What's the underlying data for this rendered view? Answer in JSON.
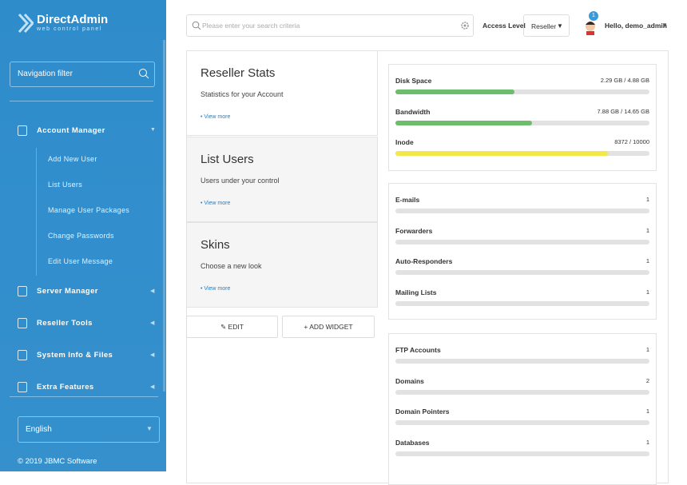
{
  "sidebar": {
    "logo": {
      "title": "DirectAdmin",
      "subtitle": "web control panel"
    },
    "nav_filter_placeholder": "Navigation filter",
    "menu": [
      {
        "label": "Account Manager",
        "items": [
          "Add New User",
          "List Users",
          "Manage User Packages",
          "Change Passwords",
          "Edit User Message"
        ]
      },
      {
        "label": "Server Manager"
      },
      {
        "label": "Reseller Tools"
      },
      {
        "label": "System Info & Files"
      },
      {
        "label": "Extra Features"
      }
    ],
    "language": "English",
    "footer": "© 2019 JBMC Software"
  },
  "topbar": {
    "search_placeholder": "Please enter your search criteria",
    "access_level_label": "Access Level",
    "access_level": "Reseller",
    "notifications": 1,
    "greeting": "Hello, demo_admin"
  },
  "widgets": [
    {
      "title": "Reseller Stats",
      "description": "Statistics for your Account",
      "link": "• View more"
    },
    {
      "title": "List Users",
      "description": "Users under your control",
      "link": "• View more"
    },
    {
      "title": "Skins",
      "description": "Choose a new look",
      "link": "• View more"
    }
  ],
  "buttons": {
    "edit": "EDIT",
    "add_widget": "ADD WIDGET"
  },
  "usage": [
    {
      "label": "Disk Space",
      "value_label": "2.29 GB / 4.88 GB",
      "used": 2.29,
      "total": 4.88,
      "color": "#6dbd6d"
    },
    {
      "label": "Bandwidth",
      "value_label": "7.88 GB / 14.65 GB",
      "used": 7.88,
      "total": 14.65,
      "color": "#6dbd6d"
    },
    {
      "label": "Inode",
      "value_label": "8372 / 10000",
      "used": 8372,
      "total": 10000,
      "color": "#f2e84a"
    }
  ],
  "counts": [
    [
      {
        "label": "E-mails",
        "value": 1
      },
      {
        "label": "Forwarders",
        "value": 1
      },
      {
        "label": "Auto-Responders",
        "value": 1
      },
      {
        "label": "Mailing Lists",
        "value": 1
      }
    ],
    [
      {
        "label": "FTP Accounts",
        "value": 1
      },
      {
        "label": "Domains",
        "value": 2
      },
      {
        "label": "Domain Pointers",
        "value": 1
      },
      {
        "label": "Databases",
        "value": 1
      }
    ]
  ]
}
